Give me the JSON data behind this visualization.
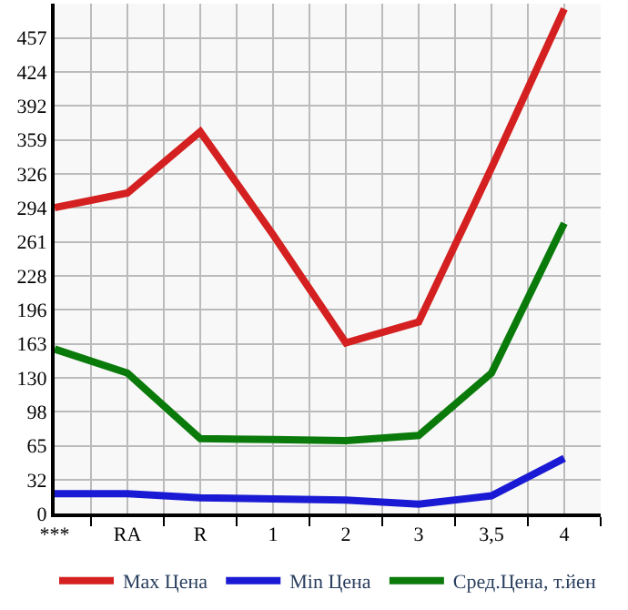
{
  "chart_data": {
    "type": "line",
    "categories": [
      "***",
      "RA",
      "R",
      "1",
      "2",
      "3",
      "3,5",
      "4"
    ],
    "series": [
      {
        "name": "Max Цена",
        "color": "#d42020",
        "values": [
          294,
          308,
          367,
          268,
          164,
          184,
          332,
          485
        ]
      },
      {
        "name": "Min Цена",
        "color": "#1a1ad4",
        "values": [
          19,
          19,
          15,
          14,
          13,
          9,
          17,
          53
        ]
      },
      {
        "name": "Сред.Цена, т.йен",
        "color": "#0a7a0a",
        "values": [
          158,
          135,
          72,
          71,
          70,
          75,
          135,
          279
        ]
      }
    ],
    "ylim": [
      0,
      490
    ],
    "yticks": [
      0,
      32,
      65,
      98,
      130,
      163,
      196,
      228,
      261,
      294,
      326,
      359,
      392,
      424,
      457
    ],
    "grid": true,
    "legend": "bottom",
    "marker": "none",
    "line_style": "solid"
  }
}
